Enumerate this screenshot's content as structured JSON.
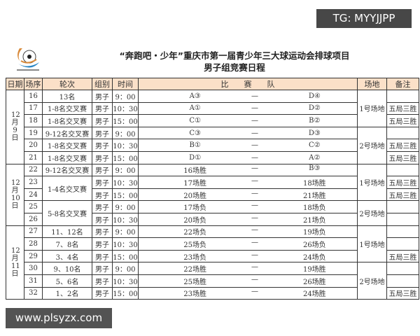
{
  "watermarks": {
    "top": "TG: MYYJJPP",
    "bottom": "www.plsyzx.com"
  },
  "title": {
    "line1": "“奔跑吧・少年”重庆市第一届青少年三大球运动会排球项目",
    "line2": "男子组竞赛日程"
  },
  "headers": [
    "日期",
    "场序",
    "轮次",
    "组别",
    "时间",
    "比　　赛　　队",
    "场地",
    "备注"
  ],
  "dates": [
    {
      "label": "12月9日",
      "span": 6
    },
    {
      "label": "12月10日",
      "span": 5
    },
    {
      "label": "12月11日",
      "span": 6
    }
  ],
  "venues": [
    {
      "label": "1号场地",
      "span": 3
    },
    {
      "label": "2号场地",
      "span": 3
    },
    {
      "label": "1号场地",
      "span": 3
    },
    {
      "label": "2号场地",
      "span": 2
    },
    {
      "label": "1号场地",
      "span": 3
    },
    {
      "label": "2号场地",
      "span": 3
    }
  ],
  "rows": [
    {
      "no": "16",
      "round": "13名",
      "roundSpan": 1,
      "group": "男子",
      "time": "9：00",
      "home": "A③",
      "sep": "—",
      "away": "D④",
      "note": ""
    },
    {
      "no": "17",
      "round": "1-8名交叉赛",
      "roundSpan": 1,
      "group": "男子",
      "time": "10：30",
      "home": "A①",
      "sep": "—",
      "away": "D②",
      "note": "五局三胜"
    },
    {
      "no": "18",
      "round": "1-8名交叉赛",
      "roundSpan": 1,
      "group": "男子",
      "time": "15：00",
      "home": "C①",
      "sep": "—",
      "away": "B②",
      "note": "五局三胜"
    },
    {
      "no": "19",
      "round": "9-12名交叉赛",
      "roundSpan": 1,
      "group": "男子",
      "time": "9：00",
      "home": "C③",
      "sep": "—",
      "away": "D③",
      "note": ""
    },
    {
      "no": "20",
      "round": "1-8名交叉赛",
      "roundSpan": 1,
      "group": "男子",
      "time": "10：30",
      "home": "B①",
      "sep": "—",
      "away": "C②",
      "note": "五局三胜"
    },
    {
      "no": "21",
      "round": "1-8名交叉赛",
      "roundSpan": 1,
      "group": "男子",
      "time": "15：00",
      "home": "D①",
      "sep": "—",
      "away": "A②",
      "note": "五局三胜"
    },
    {
      "no": "22",
      "round": "9-12名交叉赛",
      "roundSpan": 1,
      "group": "男子",
      "time": "9：00",
      "home": "16场胜",
      "sep": "—",
      "away": "B③",
      "note": ""
    },
    {
      "no": "23",
      "round": "1-4名交叉赛",
      "roundSpan": 2,
      "group": "男子",
      "time": "10：30",
      "home": "17场胜",
      "sep": "—",
      "away": "18场胜",
      "note": "五局三胜"
    },
    {
      "no": "24",
      "round": null,
      "roundSpan": 0,
      "group": "男子",
      "time": "15：00",
      "home": "20场胜",
      "sep": "—",
      "away": "21场胜",
      "note": "五局三胜"
    },
    {
      "no": "25",
      "round": "5-8名交叉赛",
      "roundSpan": 2,
      "group": "男子",
      "time": "9：00",
      "home": "17场负",
      "sep": "—",
      "away": "18场负",
      "note": ""
    },
    {
      "no": "26",
      "round": null,
      "roundSpan": 0,
      "group": "男子",
      "time": "10：30",
      "home": "20场负",
      "sep": "—",
      "away": "21场负",
      "note": ""
    },
    {
      "no": "27",
      "round": "11、12名",
      "roundSpan": 1,
      "group": "男子",
      "time": "9：00",
      "home": "22场负",
      "sep": "—",
      "away": "19场负",
      "note": ""
    },
    {
      "no": "28",
      "round": "7、8名",
      "roundSpan": 1,
      "group": "男子",
      "time": "10：30",
      "home": "25场负",
      "sep": "—",
      "away": "26场负",
      "note": ""
    },
    {
      "no": "29",
      "round": "3、4名",
      "roundSpan": 1,
      "group": "男子",
      "time": "15：00",
      "home": "23场负",
      "sep": "—",
      "away": "24场负",
      "note": "五局三胜"
    },
    {
      "no": "30",
      "round": "9、10名",
      "roundSpan": 1,
      "group": "男子",
      "time": "9：00",
      "home": "22场胜",
      "sep": "—",
      "away": "19场胜",
      "note": ""
    },
    {
      "no": "31",
      "round": "5、6名",
      "roundSpan": 1,
      "group": "男子",
      "time": "10：30",
      "home": "25场胜",
      "sep": "—",
      "away": "26场胜",
      "note": ""
    },
    {
      "no": "32",
      "round": "1、2名",
      "roundSpan": 1,
      "group": "男子",
      "time": "15：00",
      "home": "23场胜",
      "sep": "—",
      "away": "24场胜",
      "note": "五局三胜"
    }
  ],
  "colors": {
    "header_bg": "#fbe0c8",
    "border": "#333333"
  }
}
